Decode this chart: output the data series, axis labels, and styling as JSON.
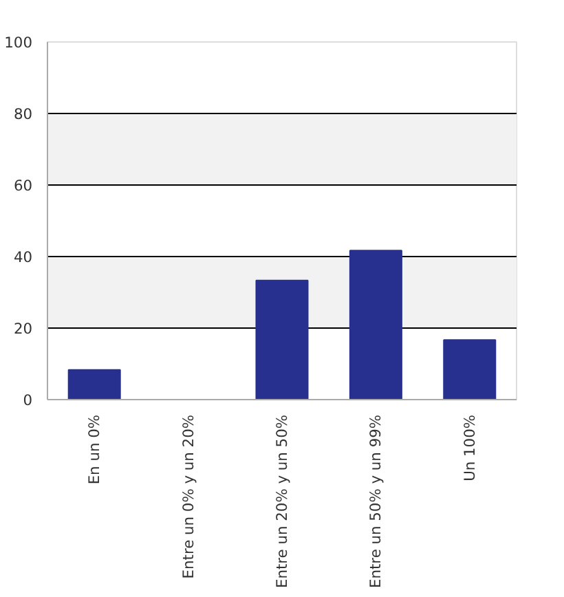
{
  "chart_data": {
    "type": "bar",
    "categories": [
      "En un 0%",
      "Entre un 0% y un 20%",
      "Entre un 20% y un 50%",
      "Entre un 50% y un 99%",
      "Un 100%"
    ],
    "values": [
      8.3,
      0,
      33.3,
      41.7,
      16.7
    ],
    "color": "#27308f",
    "ylim": [
      0,
      100
    ],
    "yticks": [
      0,
      20,
      40,
      60,
      80,
      100
    ],
    "grid": "y"
  }
}
